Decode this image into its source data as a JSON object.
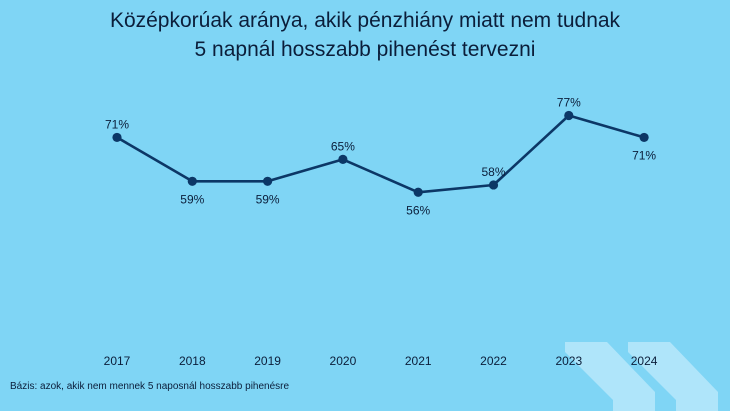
{
  "colors": {
    "background": "#7fd5f5",
    "line": "#0c3766",
    "text": "#0b1e3a",
    "chevron": "#bce9fb"
  },
  "decoration": {
    "icon": "double-chevron-right-icon"
  },
  "chart_data": {
    "type": "line",
    "title_line1": "Középkorúak aránya, akik pénzhiány miatt nem tudnak",
    "title_line2": "5 napnál hosszabb pihenést tervezni",
    "x": [
      "2017",
      "2018",
      "2019",
      "2020",
      "2021",
      "2022",
      "2023",
      "2024"
    ],
    "values": [
      71,
      59,
      59,
      65,
      56,
      58,
      77,
      71
    ],
    "data_labels": [
      "71%",
      "59%",
      "59%",
      "65%",
      "56%",
      "58%",
      "77%",
      "71%"
    ],
    "label_position": [
      "above",
      "below",
      "below",
      "above",
      "below",
      "above",
      "above",
      "below"
    ],
    "ylim": [
      0,
      100
    ],
    "grid": false,
    "legend": "none",
    "footnote": "Bázis: azok, akik nem mennek 5 naposnál hosszabb pihenésre"
  }
}
